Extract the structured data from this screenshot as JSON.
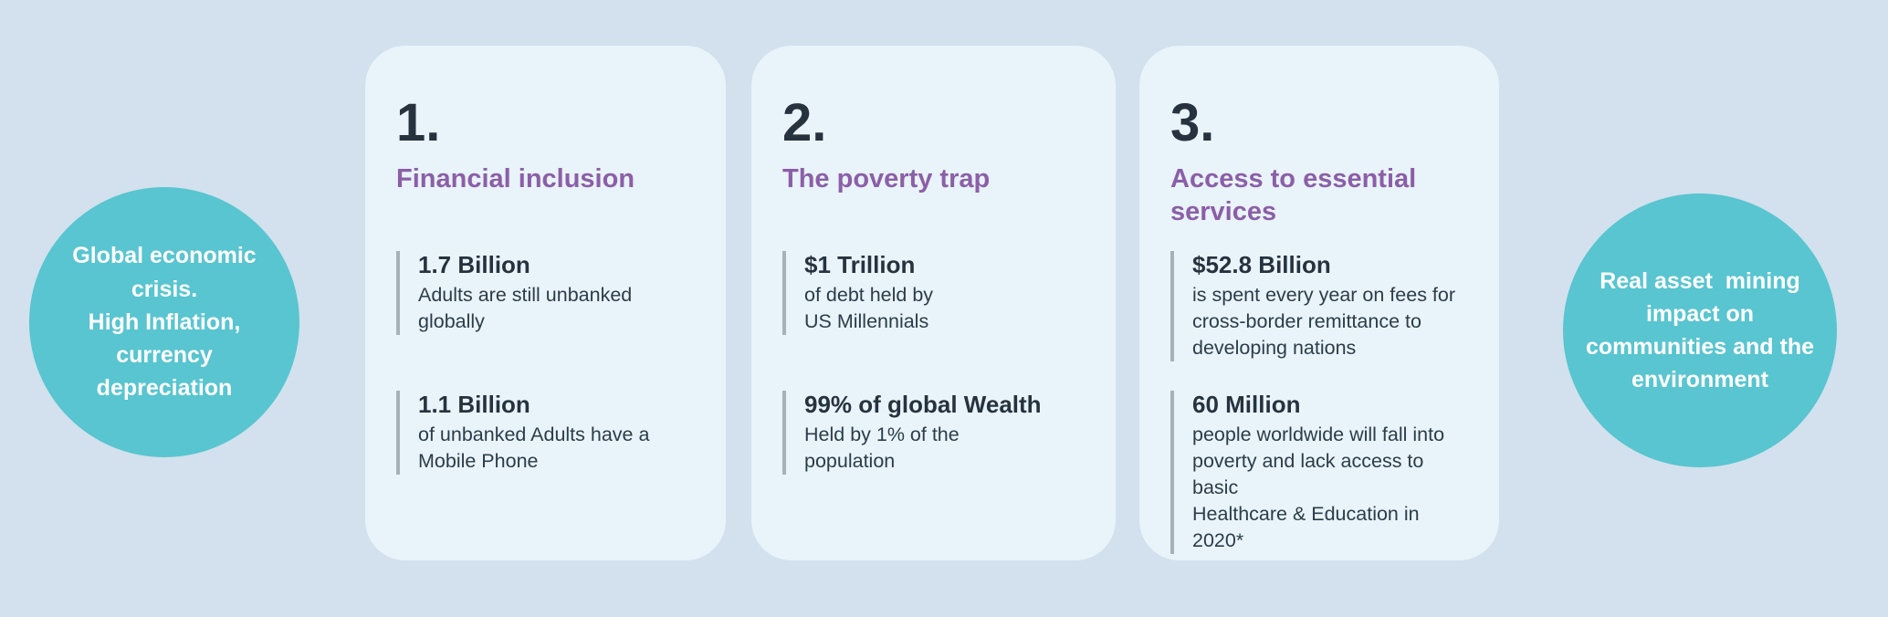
{
  "canvas": {
    "background_color": "#d2e1ed",
    "card_background_color": "#e9f3fa",
    "circle_color": "#58c5d0",
    "heading_color": "#8b5fa7",
    "dark_text_color": "#26333f",
    "stat_line_color": "#a7b1b9"
  },
  "left_circle": {
    "text": "Global economic\ncrisis.\nHigh Inflation,\ncurrency\ndepreciation"
  },
  "right_circle": {
    "text": "Real asset  mining\nimpact on\ncommunities and the\nenvironment"
  },
  "cards": [
    {
      "number": "1.",
      "title": "Financial inclusion",
      "stats": [
        {
          "value": "1.7 Billion",
          "description": "Adults are still unbanked\nglobally"
        },
        {
          "value": "1.1 Billion",
          "description": "of unbanked Adults have a\nMobile Phone"
        }
      ]
    },
    {
      "number": "2.",
      "title": "The poverty trap",
      "stats": [
        {
          "value": "$1 Trillion",
          "description": "of debt held by\nUS Millennials"
        },
        {
          "value": "99% of global Wealth",
          "description": "Held by 1% of the\npopulation"
        }
      ]
    },
    {
      "number": "3.",
      "title": "Access to essential\nservices",
      "stats": [
        {
          "value": "$52.8 Billion",
          "description": "is spent every year on fees for\ncross-border remittance to\ndeveloping nations"
        },
        {
          "value": "60 Million",
          "description": "people worldwide will fall into\npoverty and lack access to basic\nHealthcare & Education in 2020*"
        }
      ]
    }
  ]
}
